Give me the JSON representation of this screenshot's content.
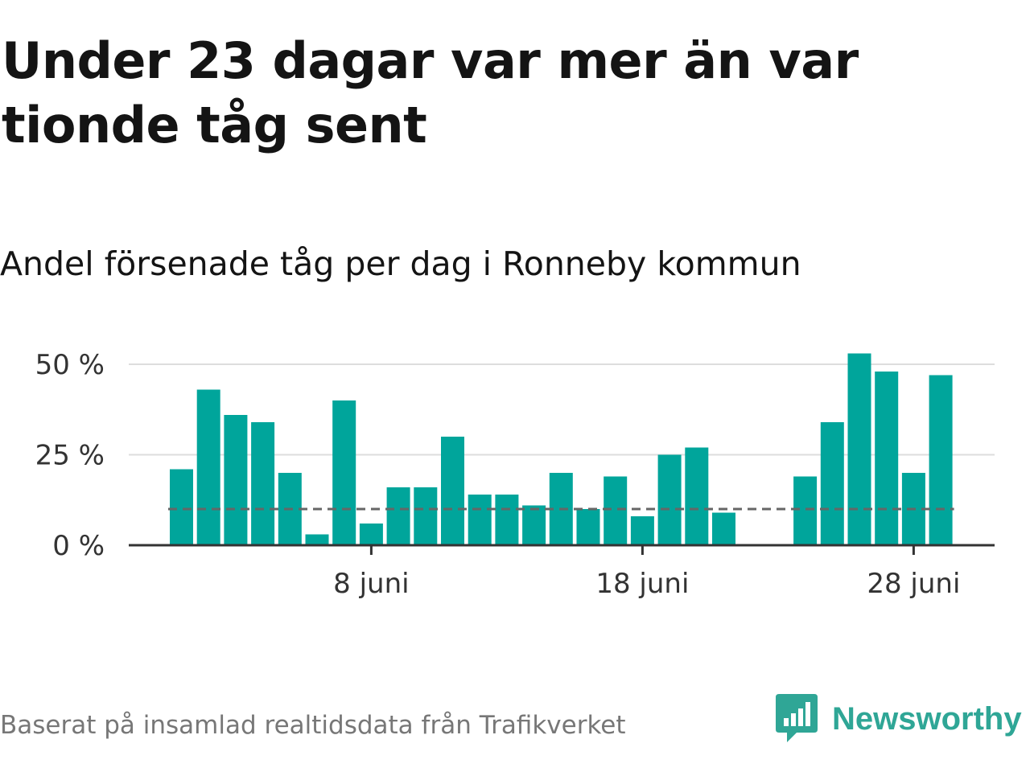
{
  "title": "Under 23 dagar var mer än var tionde tåg sent",
  "subtitle": "Andel försenade tåg per dag i Ronneby kommun",
  "source": "Baserat på insamlad realtidsdata från Trafikverket",
  "brand": {
    "name": "Newsworthy",
    "icon": "newsworthy-logo-icon"
  },
  "colors": {
    "bar": "#00a59b",
    "reference_line": "#666666",
    "grid": "#dddddd",
    "axis": "#333333",
    "brand": "#2fa696"
  },
  "chart_data": {
    "type": "bar",
    "x": [
      1,
      2,
      3,
      4,
      5,
      6,
      7,
      8,
      9,
      10,
      11,
      12,
      13,
      14,
      15,
      16,
      17,
      18,
      19,
      20,
      21,
      22,
      23,
      24,
      25,
      26,
      27,
      28,
      29,
      30
    ],
    "values": [
      21,
      43,
      36,
      34,
      20,
      3,
      40,
      6,
      16,
      16,
      30,
      14,
      14,
      11,
      20,
      10,
      19,
      8,
      25,
      27,
      9,
      null,
      null,
      19,
      34,
      53,
      48,
      20,
      47,
      null
    ],
    "x_ticks": [
      {
        "x": 8,
        "label": "8 juni"
      },
      {
        "x": 18,
        "label": "18 juni"
      },
      {
        "x": 28,
        "label": "28 juni"
      }
    ],
    "y_ticks": [
      {
        "value": 0,
        "label": "0 %"
      },
      {
        "value": 25,
        "label": "25 %"
      },
      {
        "value": 50,
        "label": "50 %"
      }
    ],
    "reference_line": 10,
    "ylim": [
      0,
      50
    ],
    "xlabel": "",
    "ylabel": "",
    "grid": true
  }
}
